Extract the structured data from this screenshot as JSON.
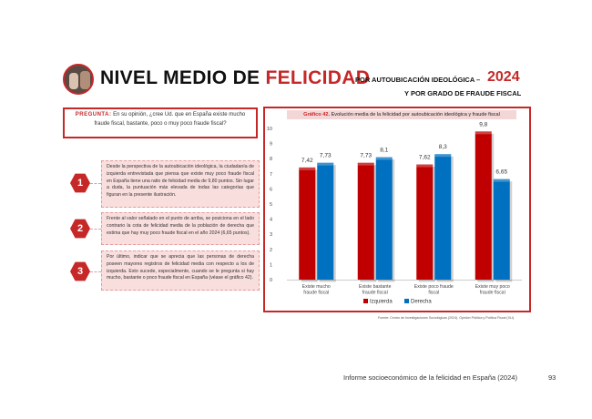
{
  "header": {
    "title_part1": "NIVEL MEDIO DE ",
    "title_part2": "FELICIDAD",
    "subtitle1": "POR AUTOUBICACIÓN IDEOLÓGICA –",
    "year": "2024",
    "subtitle2": "Y POR GRADO DE FRAUDE FISCAL"
  },
  "question": {
    "label": "PREGUNTA:",
    "text": "En su opinión, ¿cree Ud. que en España existe mucho fraude fiscal, bastante, poco o muy poco fraude fiscal?"
  },
  "notes": [
    {
      "number": "1",
      "text": "Desde la perspectiva de la autoubicación ideológica, la ciudadanía de izquierda entrevistada que piensa que existe muy poco fraude fiscal en España tiene una ratio de felicidad media de 9,80 puntos. Sin lugar a duda, la puntuación más elevada de todas las categorías que figuran en la presente ilustración."
    },
    {
      "number": "2",
      "text": "Frente al valor señalado en el punto de arriba, se posiciona en el lado contrario la cota de felicidad media de la población de derecha que estima que hay muy poco fraude fiscal en el año 2024 (6,65 puntos)."
    },
    {
      "number": "3",
      "text": "Por último, indicar que se aprecia que las personas de derecha poseen mayores registros de felicidad media con respecto a los de izquierda. Esto sucede, especialmente, cuando se le pregunta si hay mucho, bastante o poco fraude fiscal en España (véase el gráfico 42)."
    }
  ],
  "chart_title": {
    "label": "Gráfico 42.",
    "text": " Evolución media de la felicidad por autoubicación ideológica y fraude fiscal"
  },
  "chart_data": {
    "type": "bar",
    "categories": [
      "Existe mucho fraude fiscal",
      "Existe bastante fraude fiscal",
      "Existe poco fraude fiscal",
      "Existe muy poco fraude fiscal"
    ],
    "series": [
      {
        "name": "Izquierda",
        "values": [
          7.42,
          7.73,
          7.62,
          9.8
        ],
        "labels": [
          "7,42",
          "7,73",
          "7,62",
          "9,8"
        ],
        "color": "#c00000"
      },
      {
        "name": "Derecha",
        "values": [
          7.73,
          8.1,
          8.3,
          6.65
        ],
        "labels": [
          "7,73",
          "8,1",
          "8,3",
          "6,65"
        ],
        "color": "#0070c0"
      }
    ],
    "yticks": [
      "0",
      "1",
      "2",
      "3",
      "4",
      "5",
      "6",
      "7",
      "8",
      "9",
      "10"
    ],
    "ylim": [
      0,
      10
    ],
    "legend_position": "bottom",
    "grid": false
  },
  "source": "Fuente: Centro de Investigaciones Sociológicas (2024). Opinión Pública y Política Fiscal (XLI).",
  "footer": {
    "text": "Informe socioeconómico de la felicidad en España (2024)",
    "page": "93"
  }
}
